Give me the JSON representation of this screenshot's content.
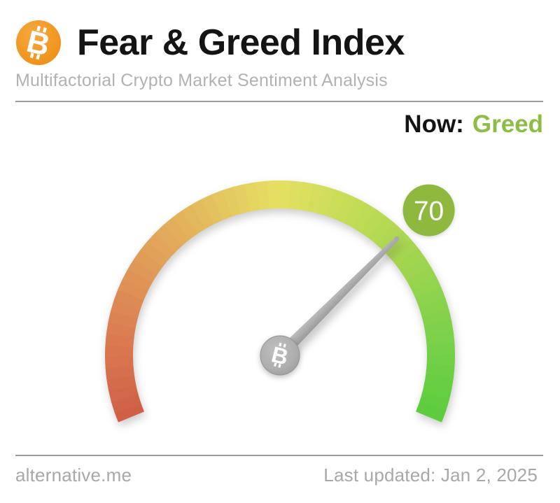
{
  "header": {
    "logo_icon": "bitcoin-icon",
    "title": "Fear & Greed Index",
    "subtitle": "Multifactorial Crypto Market Sentiment Analysis"
  },
  "status": {
    "label": "Now:",
    "value": "Greed",
    "value_color": "#8cbd45"
  },
  "chart_data": {
    "type": "gauge",
    "title": "Fear & Greed Index",
    "value": 70,
    "min": 0,
    "max": 100,
    "classification": "Greed",
    "start_angle_deg": 202.5,
    "end_angle_deg": -22.5,
    "arc_color_stops": [
      {
        "pos": 0.0,
        "color": "#ce5e44"
      },
      {
        "pos": 0.1,
        "color": "#d97450"
      },
      {
        "pos": 0.3,
        "color": "#e2a75a"
      },
      {
        "pos": 0.5,
        "color": "#e5e062"
      },
      {
        "pos": 0.62,
        "color": "#c4dc56"
      },
      {
        "pos": 0.75,
        "color": "#9fd54e"
      },
      {
        "pos": 0.87,
        "color": "#7cd14b"
      },
      {
        "pos": 1.0,
        "color": "#5bcc3c"
      }
    ],
    "needle_color": "#a8a8a8",
    "hub_icon": "bitcoin-icon",
    "badge": {
      "label": "70",
      "color": "#8fb83f",
      "text_color": "#ffffff"
    }
  },
  "footer": {
    "site": "alternative.me",
    "last_updated": "Last updated: Jan 2, 2025"
  }
}
